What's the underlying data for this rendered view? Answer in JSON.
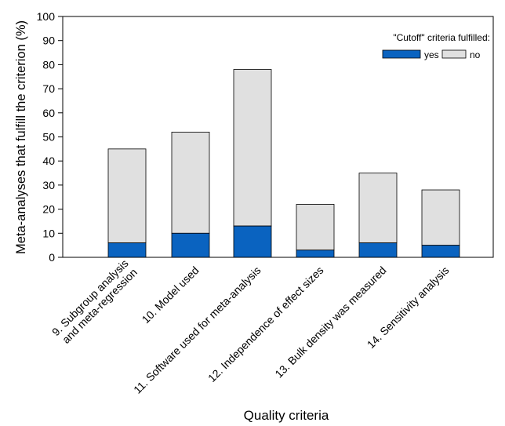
{
  "chart_data": {
    "type": "bar",
    "stacked": true,
    "categories": [
      "9. Subgroup analysis\nand meta-regression",
      "10. Model used",
      "11. Software used for meta-analysis",
      "12. Independence of effect sizes",
      "13. Bulk density was measured",
      "14. Sensitivity analysis"
    ],
    "series": [
      {
        "name": "yes",
        "values": [
          6,
          10,
          13,
          3,
          6,
          5
        ],
        "color": "#0a63c0"
      },
      {
        "name": "no",
        "values": [
          39,
          42,
          65,
          19,
          29,
          23
        ],
        "color": "#e0e0e0"
      }
    ],
    "totals": [
      45,
      52,
      78,
      22,
      35,
      28
    ],
    "title": "",
    "xlabel": "Quality criteria",
    "ylabel": "Meta-analyses that fulfill the criterion  (%)",
    "ylim": [
      0,
      100
    ],
    "yticks": [
      0,
      10,
      20,
      30,
      40,
      50,
      60,
      70,
      80,
      90,
      100
    ],
    "grid": false,
    "legend": {
      "title": "\"Cutoff\" criteria fulfilled:",
      "placement": "top-right",
      "entries": [
        "yes",
        "no"
      ]
    }
  }
}
